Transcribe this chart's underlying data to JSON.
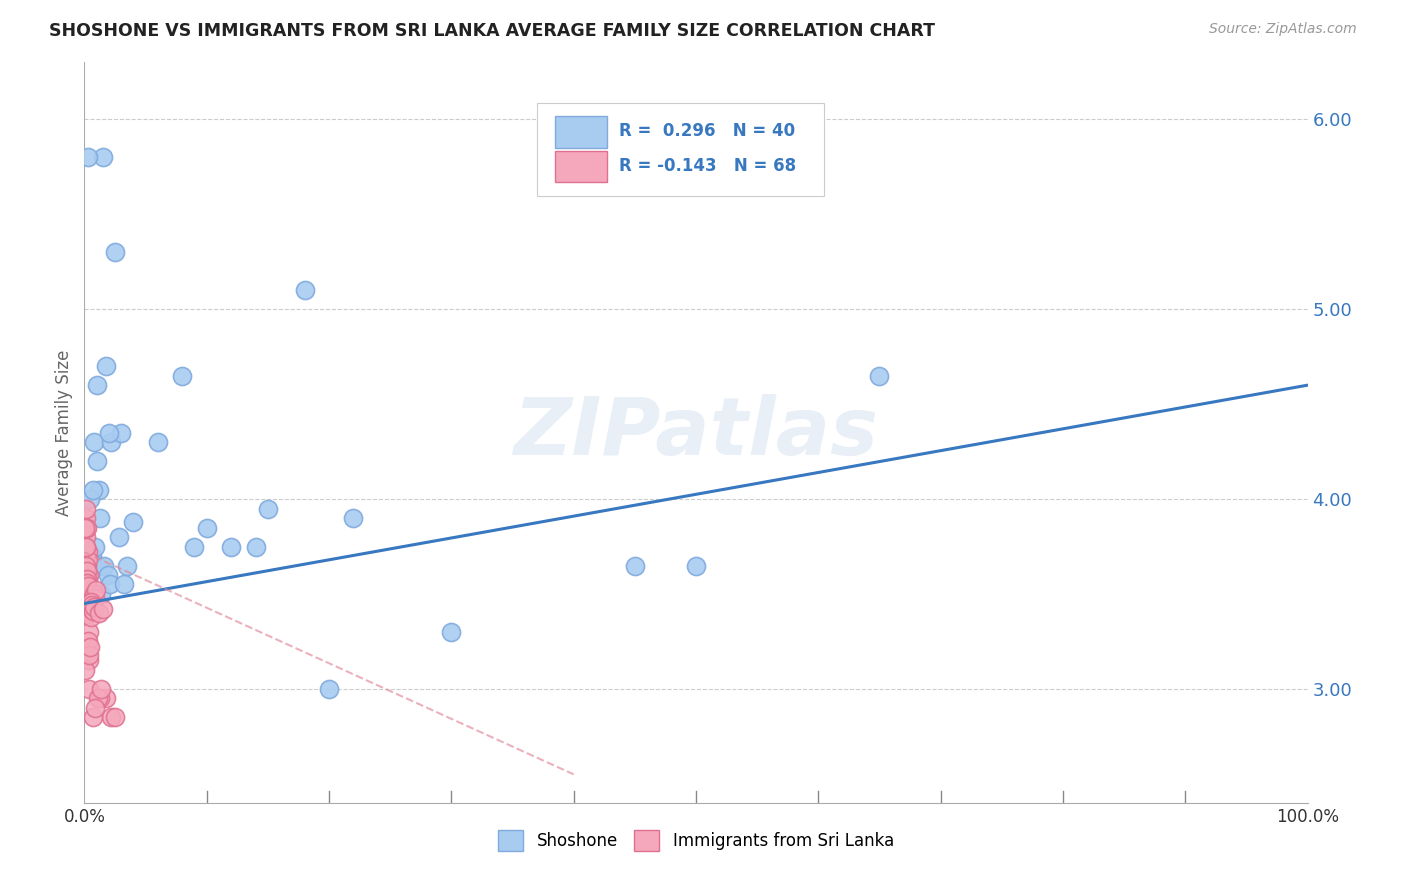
{
  "title": "SHOSHONE VS IMMIGRANTS FROM SRI LANKA AVERAGE FAMILY SIZE CORRELATION CHART",
  "source": "Source: ZipAtlas.com",
  "ylabel": "Average Family Size",
  "yticks": [
    3.0,
    4.0,
    5.0,
    6.0
  ],
  "background_color": "#ffffff",
  "watermark": "ZIPatlas",
  "legend_R1": "0.296",
  "legend_N1": "40",
  "legend_R2": "-0.143",
  "legend_N2": "68",
  "shoshone_color": "#a8ccf0",
  "shoshone_edge": "#80aade",
  "immigrants_color": "#f5a8bc",
  "immigrants_edge": "#e07090",
  "blue_line_color": "#3878c0",
  "pink_line_color": "#e08898",
  "shoshone_x": [
    1.5,
    2.5,
    1.0,
    1.8,
    0.8,
    1.2,
    2.2,
    3.0,
    0.5,
    0.7,
    1.0,
    1.3,
    2.0,
    6.0,
    10.0,
    12.0,
    15.0,
    18.0,
    0.3,
    0.4,
    0.6,
    0.9,
    1.1,
    1.6,
    2.8,
    3.5,
    8.0,
    45.0,
    65.0,
    1.4,
    1.9,
    2.1,
    3.2,
    9.0,
    14.0,
    22.0,
    50.0,
    4.0,
    20.0,
    30.0
  ],
  "shoshone_y": [
    5.8,
    5.3,
    4.6,
    4.7,
    4.3,
    4.05,
    4.3,
    4.35,
    4.0,
    4.05,
    4.2,
    3.9,
    4.35,
    4.3,
    3.85,
    3.75,
    3.95,
    5.1,
    5.8,
    3.7,
    3.7,
    3.75,
    3.65,
    3.65,
    3.8,
    3.65,
    4.65,
    3.65,
    4.65,
    3.5,
    3.6,
    3.55,
    3.55,
    3.75,
    3.75,
    3.9,
    3.65,
    3.88,
    3.0,
    3.3
  ],
  "immigrants_x": [
    0.05,
    0.1,
    0.1,
    0.12,
    0.15,
    0.15,
    0.18,
    0.2,
    0.2,
    0.22,
    0.25,
    0.25,
    0.28,
    0.3,
    0.3,
    0.32,
    0.35,
    0.35,
    0.38,
    0.4,
    0.42,
    0.45,
    0.48,
    0.5,
    0.08,
    0.08,
    0.06,
    0.14,
    0.14,
    0.16,
    0.19,
    0.24,
    0.11,
    0.13,
    0.17,
    0.21,
    0.27,
    0.31,
    0.09,
    0.23,
    0.29,
    0.36,
    0.33,
    0.37,
    0.41,
    0.06,
    0.26,
    0.39,
    0.43,
    0.55,
    0.65,
    0.75,
    0.85,
    0.95,
    0.58,
    0.62,
    0.72,
    0.78,
    1.2,
    1.5,
    1.8,
    2.2,
    1.3,
    2.5,
    1.1,
    1.4,
    0.7,
    0.9
  ],
  "immigrants_y": [
    3.55,
    3.75,
    3.9,
    3.8,
    3.85,
    3.95,
    3.7,
    3.65,
    3.85,
    3.62,
    3.5,
    3.7,
    3.58,
    3.52,
    3.72,
    3.68,
    3.5,
    3.6,
    3.48,
    3.42,
    3.44,
    3.42,
    3.4,
    3.45,
    3.75,
    3.85,
    3.6,
    3.75,
    3.65,
    3.55,
    3.62,
    3.58,
    3.55,
    3.52,
    3.5,
    3.48,
    3.42,
    3.44,
    3.46,
    3.56,
    3.54,
    3.3,
    3.2,
    3.15,
    3.0,
    3.1,
    3.25,
    3.18,
    3.22,
    3.38,
    3.42,
    3.5,
    3.48,
    3.52,
    3.46,
    3.44,
    3.41,
    3.43,
    3.4,
    3.42,
    2.95,
    2.85,
    2.95,
    2.85,
    2.95,
    3.0,
    2.85,
    2.9
  ],
  "blue_line_x0": 0,
  "blue_line_y0": 3.45,
  "blue_line_x1": 100,
  "blue_line_y1": 4.6,
  "pink_line_x0": 0,
  "pink_line_y0": 3.72,
  "pink_line_x1": 40,
  "pink_line_y1": 2.55,
  "xmin": 0,
  "xmax": 100,
  "ymin": 2.4,
  "ymax": 6.3
}
